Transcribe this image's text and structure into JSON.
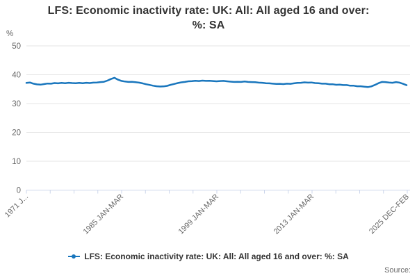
{
  "header": {
    "title": "LFS: Economic inactivity rate: UK: All: All aged 16 and over: %: SA",
    "title_lines": [
      "LFS: Economic inactivity rate: UK: All: All aged 16 and over:",
      "%: SA"
    ]
  },
  "legend": {
    "label": "LFS: Economic inactivity rate: UK: All: All aged 16 and over: %: SA"
  },
  "source_label": "Source:",
  "colors": {
    "series": "#1976bd",
    "grid": "#e6e6e6",
    "axis": "#ccd6eb",
    "tick_text": "#666666",
    "title_text": "#333333"
  },
  "chart_data": {
    "type": "line",
    "title": "LFS: Economic inactivity rate: UK: All: All aged 16 and over: %: SA",
    "xlabel": "",
    "ylabel": "%",
    "ylim": [
      0,
      50
    ],
    "y_ticks": [
      0,
      10,
      20,
      30,
      40,
      50
    ],
    "x_tick_labels": [
      "1971 J...",
      "1985 JAN-MAR",
      "1999 JAN-MAR",
      "2013 JAN-MAR",
      "2025 DEC-FEB"
    ],
    "x_minor_ticks_total": 17,
    "x_label_every": 4,
    "x_range_years": [
      1971,
      2025.1
    ],
    "grid": "horizontal",
    "legend_position": "bottom",
    "series": [
      {
        "name": "LFS: Economic inactivity rate: UK: All: All aged 16 and over: %: SA",
        "start_year": 1971,
        "step_years": 0.5,
        "values": [
          37.15,
          37.3,
          36.9,
          36.65,
          36.55,
          36.75,
          36.95,
          36.9,
          37.1,
          37.0,
          37.15,
          37.05,
          37.2,
          37.1,
          37.05,
          37.15,
          37.05,
          37.2,
          37.1,
          37.25,
          37.3,
          37.45,
          37.55,
          37.95,
          38.5,
          38.95,
          38.3,
          37.85,
          37.65,
          37.5,
          37.55,
          37.4,
          37.25,
          37.0,
          36.7,
          36.45,
          36.2,
          36.0,
          35.9,
          35.95,
          36.15,
          36.5,
          36.8,
          37.1,
          37.35,
          37.5,
          37.7,
          37.75,
          37.9,
          37.8,
          37.95,
          37.85,
          37.9,
          37.8,
          37.7,
          37.8,
          37.85,
          37.7,
          37.6,
          37.5,
          37.55,
          37.5,
          37.65,
          37.5,
          37.45,
          37.4,
          37.25,
          37.2,
          37.05,
          37.0,
          36.9,
          36.8,
          36.85,
          36.75,
          36.9,
          36.85,
          37.0,
          37.15,
          37.2,
          37.35,
          37.25,
          37.3,
          37.1,
          37.05,
          36.9,
          36.9,
          36.7,
          36.7,
          36.5,
          36.55,
          36.4,
          36.4,
          36.2,
          36.2,
          36.0,
          36.0,
          35.85,
          35.7,
          35.95,
          36.45,
          37.05,
          37.5,
          37.45,
          37.3,
          37.2,
          37.45,
          37.25,
          36.85,
          36.35
        ]
      }
    ]
  }
}
